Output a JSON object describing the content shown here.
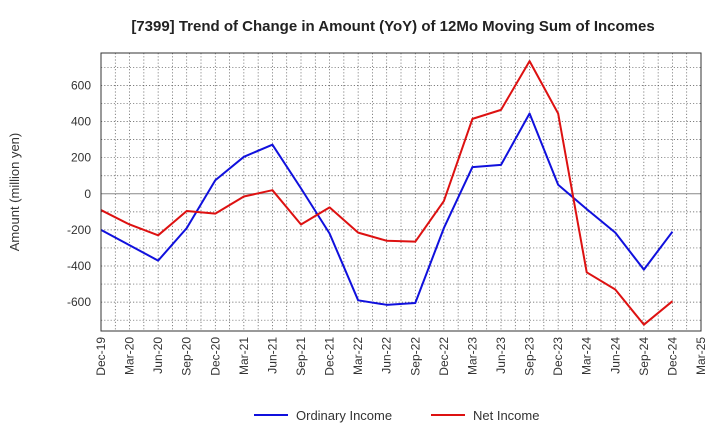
{
  "chart_data": {
    "type": "line",
    "title": "[7399]  Trend of Change in Amount (YoY) of 12Mo Moving Sum of Incomes",
    "xlabel": "",
    "ylabel": "Amount (million yen)",
    "categories": [
      "Dec-19",
      "Mar-20",
      "Jun-20",
      "Sep-20",
      "Dec-20",
      "Mar-21",
      "Jun-21",
      "Sep-21",
      "Dec-21",
      "Mar-22",
      "Jun-22",
      "Sep-22",
      "Dec-22",
      "Mar-23",
      "Jun-23",
      "Sep-23",
      "Dec-23",
      "Mar-24",
      "Jun-24",
      "Sep-24",
      "Dec-24",
      "Mar-25"
    ],
    "ylim": [
      -760,
      780
    ],
    "yticks": [
      -600,
      -400,
      -200,
      0,
      200,
      400,
      600
    ],
    "grid": true,
    "legend_position": "bottom",
    "series": [
      {
        "name": "Ordinary Income",
        "color": "#1010dd",
        "values": [
          -200,
          -285,
          -370,
          -190,
          75,
          205,
          272,
          30,
          -220,
          -590,
          -615,
          -605,
          -190,
          148,
          160,
          445,
          50,
          -85,
          -215,
          -420,
          -210,
          null
        ]
      },
      {
        "name": "Net Income",
        "color": "#dd1111",
        "values": [
          -90,
          -170,
          -230,
          -95,
          -110,
          -15,
          20,
          -170,
          -75,
          -215,
          -260,
          -265,
          -40,
          415,
          465,
          735,
          445,
          -435,
          -530,
          -725,
          -595,
          null
        ]
      }
    ]
  }
}
